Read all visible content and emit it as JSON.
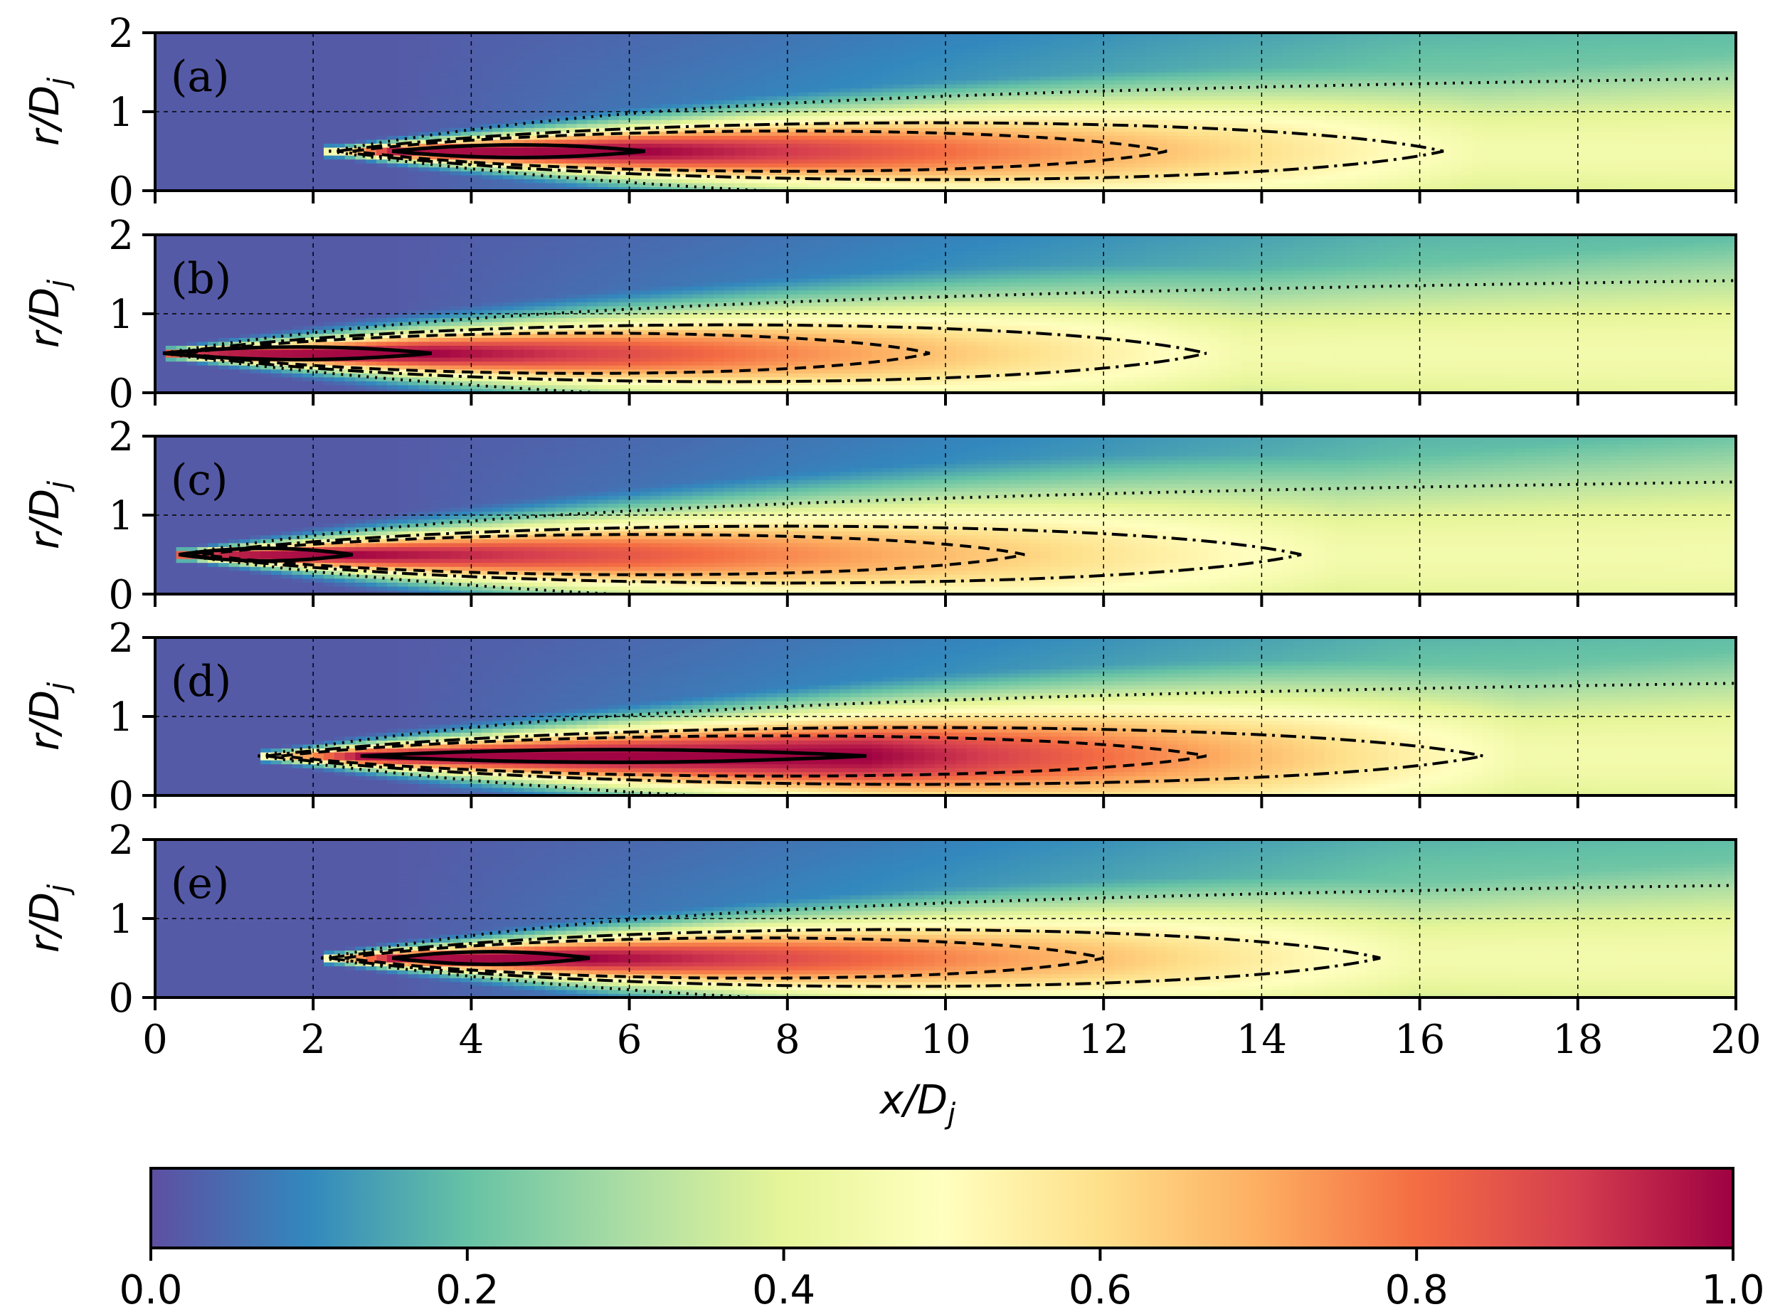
{
  "chart_data": {
    "type": "heatmap",
    "description_ref": "five stacked contour/heatmap panels",
    "xlabel": "x/D",
    "xlabel_sub": "j",
    "ylabel": "r/D",
    "ylabel_sub": "j",
    "xlim": [
      0,
      20
    ],
    "ylim": [
      0,
      2
    ],
    "xticks": [
      "0",
      "2",
      "4",
      "6",
      "8",
      "10",
      "12",
      "14",
      "16",
      "18",
      "20"
    ],
    "yticks": [
      "0",
      "1",
      "2"
    ],
    "grid": true,
    "colorbar": {
      "range": [
        0.0,
        1.0
      ],
      "ticks": [
        "0.0",
        "0.2",
        "0.4",
        "0.6",
        "0.8",
        "1.0"
      ],
      "colormap": "Spectral_r",
      "stops": [
        "#5e4fa2",
        "#3288bd",
        "#66c2a5",
        "#abdda4",
        "#e6f598",
        "#ffffbf",
        "#fee08b",
        "#fdae61",
        "#f46d43",
        "#d53e4f",
        "#9e0142"
      ]
    },
    "panels": [
      {
        "label": "(a)",
        "core_start": 3.0,
        "core_end": 6.2,
        "core_len": 12.8,
        "shear_start": 2.2,
        "spread": 0.055
      },
      {
        "label": "(b)",
        "core_start": 0.1,
        "core_end": 3.5,
        "core_len": 9.8,
        "shear_start": 0.1,
        "spread": 0.055
      },
      {
        "label": "(c)",
        "core_start": 0.3,
        "core_end": 2.5,
        "core_len": 11.0,
        "shear_start": 0.3,
        "spread": 0.06
      },
      {
        "label": "(d)",
        "core_start": 2.6,
        "core_end": 9.0,
        "core_len": 13.3,
        "shear_start": 1.3,
        "spread": 0.055
      },
      {
        "label": "(e)",
        "core_start": 3.0,
        "core_end": 5.5,
        "core_len": 12.0,
        "shear_start": 2.1,
        "spread": 0.055
      }
    ]
  }
}
